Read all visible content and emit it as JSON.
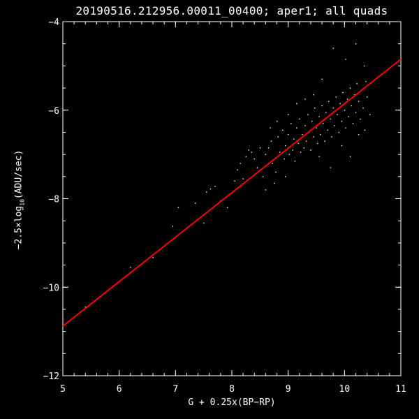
{
  "chart_data": {
    "type": "scatter",
    "title": "20190516.212956.00011_00400; aper1; all quads",
    "xlabel": "G + 0.25x(BP−RP)",
    "ylabel": {
      "pre": "−2.5×log",
      "sub": "10",
      "post": "(ADU/sec)"
    },
    "xlim": [
      5,
      11
    ],
    "ylim": [
      -12,
      -4
    ],
    "xticks": [
      "5",
      "6",
      "7",
      "8",
      "9",
      "10",
      "11"
    ],
    "yticks": [
      "-12",
      "-10",
      "-8",
      "-6",
      "-4"
    ],
    "grid": false,
    "colors": {
      "background": "#000000",
      "points": "#ffffff",
      "fit_line": "#ff0000",
      "axes": "#ffffff"
    },
    "fit_line": {
      "x": [
        5,
        11
      ],
      "y": [
        -10.88,
        -4.85
      ]
    },
    "points": [
      [
        5.4,
        -10.45
      ],
      [
        6.2,
        -9.55
      ],
      [
        6.6,
        -9.33
      ],
      [
        6.95,
        -8.62
      ],
      [
        7.05,
        -8.2
      ],
      [
        7.35,
        -8.1
      ],
      [
        7.5,
        -8.55
      ],
      [
        7.55,
        -7.85
      ],
      [
        7.62,
        -7.78
      ],
      [
        7.7,
        -7.72
      ],
      [
        7.8,
        -8.05
      ],
      [
        7.92,
        -8.2
      ],
      [
        8.05,
        -7.6
      ],
      [
        8.1,
        -7.35
      ],
      [
        8.15,
        -7.2
      ],
      [
        8.25,
        -7.05
      ],
      [
        8.3,
        -6.9
      ],
      [
        8.4,
        -7.1
      ],
      [
        8.45,
        -7.3
      ],
      [
        8.55,
        -7.5
      ],
      [
        8.6,
        -7.0
      ],
      [
        8.65,
        -6.85
      ],
      [
        8.7,
        -6.7
      ],
      [
        8.72,
        -7.2
      ],
      [
        8.78,
        -7.4
      ],
      [
        8.82,
        -6.6
      ],
      [
        8.85,
        -6.95
      ],
      [
        8.9,
        -6.45
      ],
      [
        8.93,
        -7.1
      ],
      [
        8.95,
        -6.8
      ],
      [
        9.0,
        -6.55
      ],
      [
        9.02,
        -7.0
      ],
      [
        9.05,
        -6.3
      ],
      [
        9.08,
        -6.9
      ],
      [
        9.1,
        -6.65
      ],
      [
        9.12,
        -7.15
      ],
      [
        9.15,
        -6.4
      ],
      [
        9.18,
        -6.75
      ],
      [
        9.2,
        -6.2
      ],
      [
        9.22,
        -6.95
      ],
      [
        9.25,
        -6.55
      ],
      [
        9.28,
        -6.85
      ],
      [
        9.3,
        -6.35
      ],
      [
        9.32,
        -6.7
      ],
      [
        9.35,
        -6.1
      ],
      [
        9.37,
        -6.5
      ],
      [
        9.4,
        -6.9
      ],
      [
        9.42,
        -6.25
      ],
      [
        9.45,
        -6.6
      ],
      [
        9.47,
        -5.95
      ],
      [
        9.5,
        -6.4
      ],
      [
        9.52,
        -6.75
      ],
      [
        9.55,
        -6.15
      ],
      [
        9.57,
        -6.55
      ],
      [
        9.6,
        -5.9
      ],
      [
        9.62,
        -6.3
      ],
      [
        9.65,
        -6.7
      ],
      [
        9.67,
        -6.05
      ],
      [
        9.7,
        -6.45
      ],
      [
        9.72,
        -5.8
      ],
      [
        9.75,
        -6.2
      ],
      [
        9.77,
        -6.6
      ],
      [
        9.8,
        -5.95
      ],
      [
        9.82,
        -6.35
      ],
      [
        9.85,
        -5.7
      ],
      [
        9.87,
        -6.1
      ],
      [
        9.9,
        -6.5
      ],
      [
        9.92,
        -5.85
      ],
      [
        9.95,
        -6.25
      ],
      [
        9.97,
        -5.6
      ],
      [
        10.0,
        -6.0
      ],
      [
        10.02,
        -6.4
      ],
      [
        10.05,
        -5.75
      ],
      [
        10.07,
        -6.15
      ],
      [
        10.1,
        -5.5
      ],
      [
        10.12,
        -5.9
      ],
      [
        10.15,
        -6.3
      ],
      [
        10.18,
        -5.65
      ],
      [
        10.2,
        -6.05
      ],
      [
        10.22,
        -5.4
      ],
      [
        10.25,
        -5.8
      ],
      [
        10.28,
        -6.2
      ],
      [
        10.3,
        -5.55
      ],
      [
        10.33,
        -5.95
      ],
      [
        10.36,
        -6.45
      ],
      [
        10.4,
        -5.7
      ],
      [
        10.45,
        -6.1
      ],
      [
        10.2,
        -4.5
      ],
      [
        10.02,
        -4.85
      ],
      [
        9.8,
        -4.6
      ],
      [
        10.35,
        -5.0
      ],
      [
        9.6,
        -5.3
      ],
      [
        9.45,
        -5.65
      ],
      [
        9.3,
        -5.75
      ],
      [
        9.15,
        -5.85
      ],
      [
        9.0,
        -6.1
      ],
      [
        8.8,
        -6.25
      ],
      [
        8.68,
        -6.4
      ],
      [
        8.5,
        -6.85
      ],
      [
        8.35,
        -6.95
      ],
      [
        9.95,
        -6.8
      ],
      [
        10.1,
        -7.05
      ],
      [
        9.75,
        -7.3
      ],
      [
        9.55,
        -7.05
      ],
      [
        8.95,
        -7.5
      ],
      [
        8.75,
        -7.65
      ],
      [
        8.6,
        -7.8
      ],
      [
        8.2,
        -7.55
      ],
      [
        10.25,
        -6.55
      ],
      [
        10.38,
        -5.35
      ]
    ]
  }
}
